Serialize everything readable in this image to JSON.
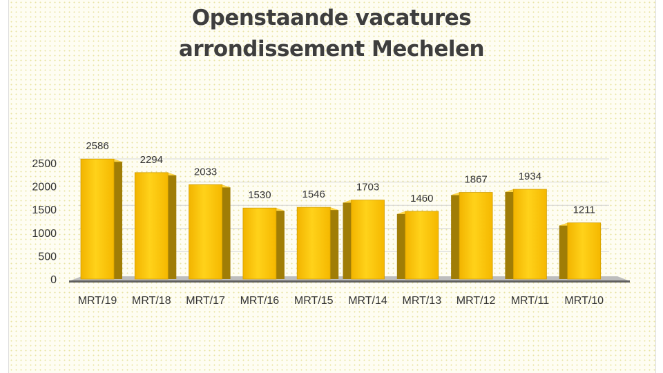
{
  "chart_data": {
    "type": "bar",
    "title_lines": [
      "Openstaande vacatures",
      "arrondissement Mechelen"
    ],
    "categories": [
      "MRT/19",
      "MRT/18",
      "MRT/17",
      "MRT/16",
      "MRT/15",
      "MRT/14",
      "MRT/13",
      "MRT/12",
      "MRT/11",
      "MRT/10"
    ],
    "values": [
      2586,
      2294,
      2033,
      1530,
      1546,
      1703,
      1460,
      1867,
      1934,
      1211
    ],
    "yticks": [
      0,
      500,
      1000,
      1500,
      2000,
      2500
    ],
    "ylim": [
      0,
      2500
    ],
    "xlabel": "",
    "ylabel": "",
    "grid": true,
    "legend": "none",
    "bar_color": "#ffc000",
    "bar_side_color": "#a07d06",
    "floor_color": "#9a9a9a"
  }
}
